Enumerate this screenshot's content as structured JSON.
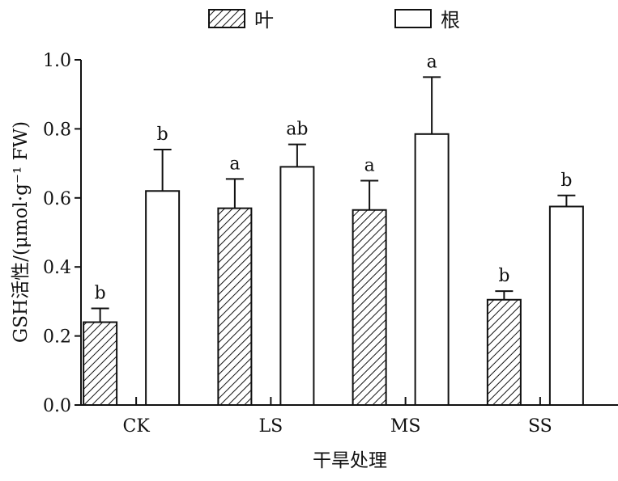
{
  "chart_data": {
    "type": "bar",
    "categories": [
      "CK",
      "LS",
      "MS",
      "SS"
    ],
    "series": [
      {
        "name": "叶",
        "pattern": "diagonal-hatch",
        "values": [
          0.24,
          0.57,
          0.565,
          0.305
        ],
        "errors": [
          0.04,
          0.085,
          0.085,
          0.025
        ],
        "labels": [
          "b",
          "a",
          "a",
          "b"
        ]
      },
      {
        "name": "根",
        "pattern": "white",
        "values": [
          0.62,
          0.69,
          0.785,
          0.575
        ],
        "errors": [
          0.12,
          0.065,
          0.165,
          0.032
        ],
        "labels": [
          "b",
          "ab",
          "a",
          "b"
        ]
      }
    ],
    "xlabel": "干旱处理",
    "ylabel": "GSH活性/(μmol·g⁻¹ FW)",
    "ylim": [
      0,
      1.0
    ],
    "yticks": [
      0.0,
      0.2,
      0.4,
      0.6,
      0.8,
      1.0
    ],
    "ytick_labels": [
      "0.0",
      "0.2",
      "0.4",
      "0.6",
      "0.8",
      "1.0"
    ],
    "legend_position": "top-center",
    "grid": false,
    "bar_edge_color": "#111111",
    "bar_fill_color": "#ffffff"
  }
}
